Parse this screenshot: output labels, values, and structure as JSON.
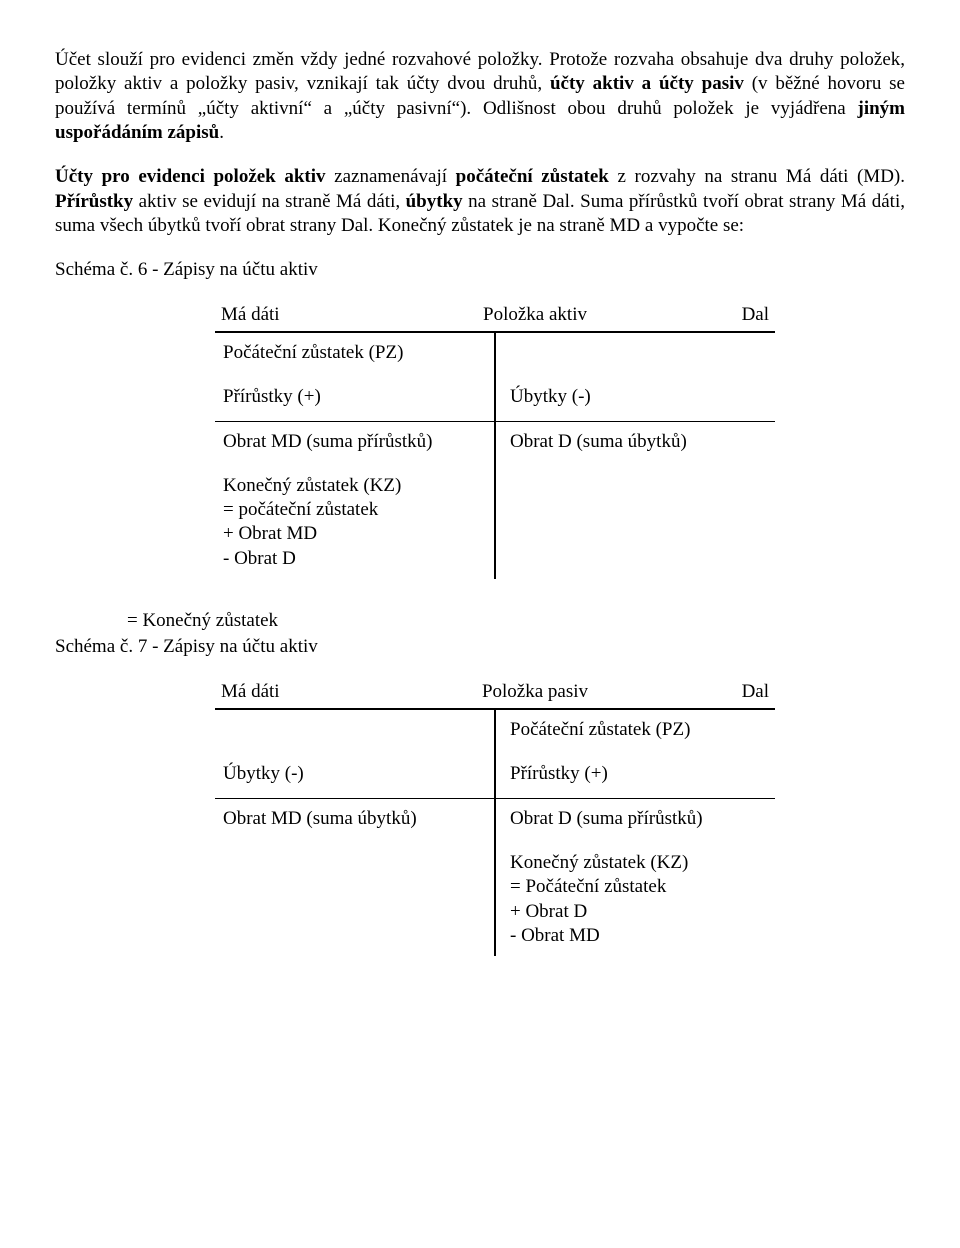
{
  "para1_html": "Účet slouží pro evidenci změn vždy jedné rozvahové položky. Protože rozvaha obsahuje dva druhy položek, položky aktiv a položky pasiv, vznikají tak účty dvou druhů, <b>účty aktiv a účty pasiv</b> (v běžné hovoru se používá termínů „účty aktivní“ a „účty pasivní“). Odlišnost obou druhů položek je vyjádřena <b>jiným uspořádáním zápisů</b>.",
  "para2_html": "<b>Účty pro evidenci položek aktiv</b> zaznamenávají <b>počáteční zůstatek</b> z rozvahy na stranu Má dáti (MD). <b>Přírůstky</b> aktiv se evidují na straně Má dáti, <b>úbytky</b> na straně Dal. Suma přírůstků tvoří obrat strany Má dáti, suma všech úbytků tvoří obrat strany Dal. Konečný zůstatek je na straně MD a vypočte se:",
  "schema6_title": "Schéma č. 6 -  Zápisy na účtu aktiv",
  "schema7_title": "Schéma č. 7 - Zápisy na účtu aktiv",
  "footer_eq": "= Konečný zůstatek",
  "t1": {
    "header": {
      "left": "Má dáti",
      "mid": "Položka aktiv",
      "right": "Dal"
    },
    "left_rows": [
      {
        "text": "Počáteční zůstatek (PZ)",
        "underline": false
      },
      {
        "text": "Přírůstky  (+)",
        "underline": true
      },
      {
        "text": "Obrat MD (suma přírůstků)",
        "underline": false
      },
      {
        "text": "Konečný zůstatek (KZ)\n    = počáteční zůstatek\n    + Obrat MD\n    - Obrat D",
        "underline": false
      }
    ],
    "right_rows": [
      {
        "text": "",
        "underline": false
      },
      {
        "text": "Úbytky   (-)",
        "underline": true
      },
      {
        "text": "Obrat D (suma úbytků)",
        "underline": false
      }
    ]
  },
  "t2": {
    "header": {
      "left": "Má dáti",
      "mid": "Položka pasiv",
      "right": "Dal"
    },
    "left_rows": [
      {
        "text": "",
        "underline": false
      },
      {
        "text": "Úbytky   (-)",
        "underline": true
      },
      {
        "text": "Obrat MD (suma úbytků)",
        "underline": false
      }
    ],
    "right_rows": [
      {
        "text": "Počáteční zůstatek (PZ)",
        "underline": false
      },
      {
        "text": "Přírůstky  (+)",
        "underline": true
      },
      {
        "text": "Obrat D (suma přírůstků)",
        "underline": false
      },
      {
        "text": "Konečný zůstatek (KZ)\n    = Počáteční zůstatek\n    + Obrat D\n    - Obrat MD",
        "underline": false
      }
    ]
  }
}
